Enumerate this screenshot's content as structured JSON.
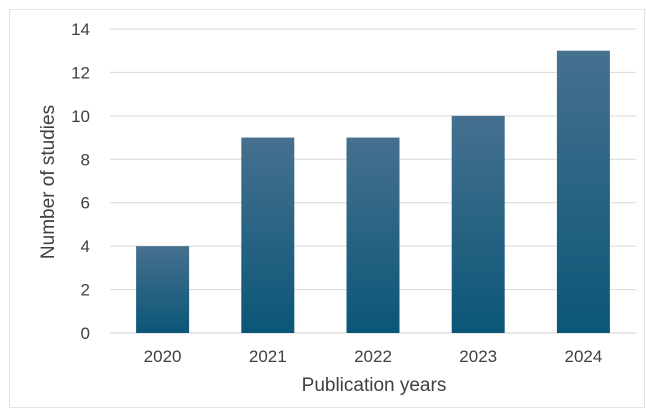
{
  "chart_data": {
    "type": "bar",
    "title": "",
    "xlabel": "Publication years",
    "ylabel": "Number of studies",
    "categories": [
      "2020",
      "2021",
      "2022",
      "2023",
      "2024"
    ],
    "values": [
      4,
      9,
      9,
      10,
      13
    ],
    "ylim": [
      0,
      14
    ],
    "yticks": [
      0,
      2,
      4,
      6,
      8,
      10,
      12,
      14
    ],
    "grid": true,
    "legend": "none",
    "colors": {
      "bar_top": "#46708f",
      "bar_bottom": "#0b5677",
      "gridline": "#d9d9d9",
      "axis_line": "#d0d0d0",
      "text": "#404040"
    }
  }
}
